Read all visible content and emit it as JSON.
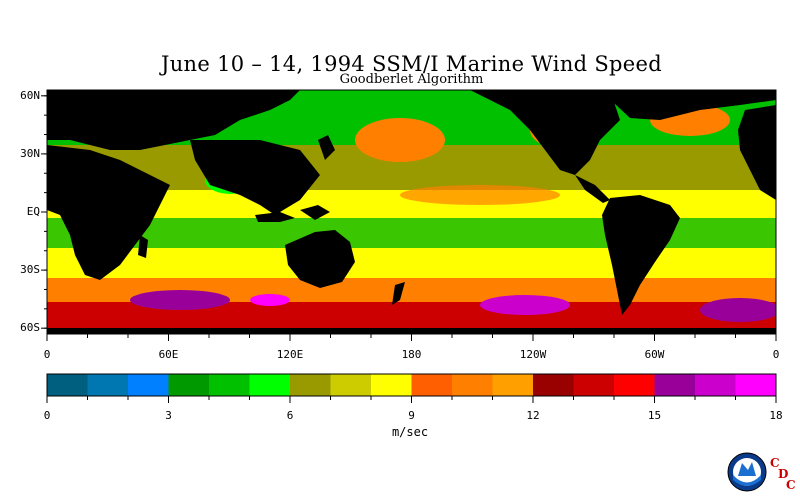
{
  "title": "June 10 – 14, 1994 SSM/I Marine Wind Speed",
  "subtitle": "Goodberlet Algorithm",
  "map": {
    "lat_labels": [
      "60N",
      "30N",
      "EQ",
      "30S",
      "60S"
    ],
    "lat_values": [
      60,
      30,
      0,
      -30,
      -60
    ],
    "lon_labels": [
      "0",
      "60E",
      "120E",
      "180",
      "120W",
      "60W",
      "0"
    ],
    "lon_values": [
      0,
      60,
      120,
      180,
      240,
      300,
      360
    ],
    "land_color": "#000000",
    "lat_range": [
      -63,
      63
    ],
    "lon_range": [
      0,
      360
    ]
  },
  "colorbar": {
    "colors": [
      "#005f7f",
      "#0077b0",
      "#0080ff",
      "#009900",
      "#00c000",
      "#00ff00",
      "#999900",
      "#cccc00",
      "#ffff00",
      "#ff5f00",
      "#ff8000",
      "#ffa000",
      "#990000",
      "#cc0000",
      "#ff0000",
      "#990099",
      "#cc00cc",
      "#ff00ff"
    ],
    "tick_labels": [
      "0",
      "3",
      "6",
      "9",
      "12",
      "15",
      "18"
    ],
    "tick_values": [
      0,
      3,
      6,
      9,
      12,
      15,
      18
    ],
    "range": [
      0,
      18
    ],
    "unit": "m/sec"
  },
  "logo": {
    "name": "NOAA",
    "letters": [
      "C",
      "D",
      "C"
    ]
  }
}
